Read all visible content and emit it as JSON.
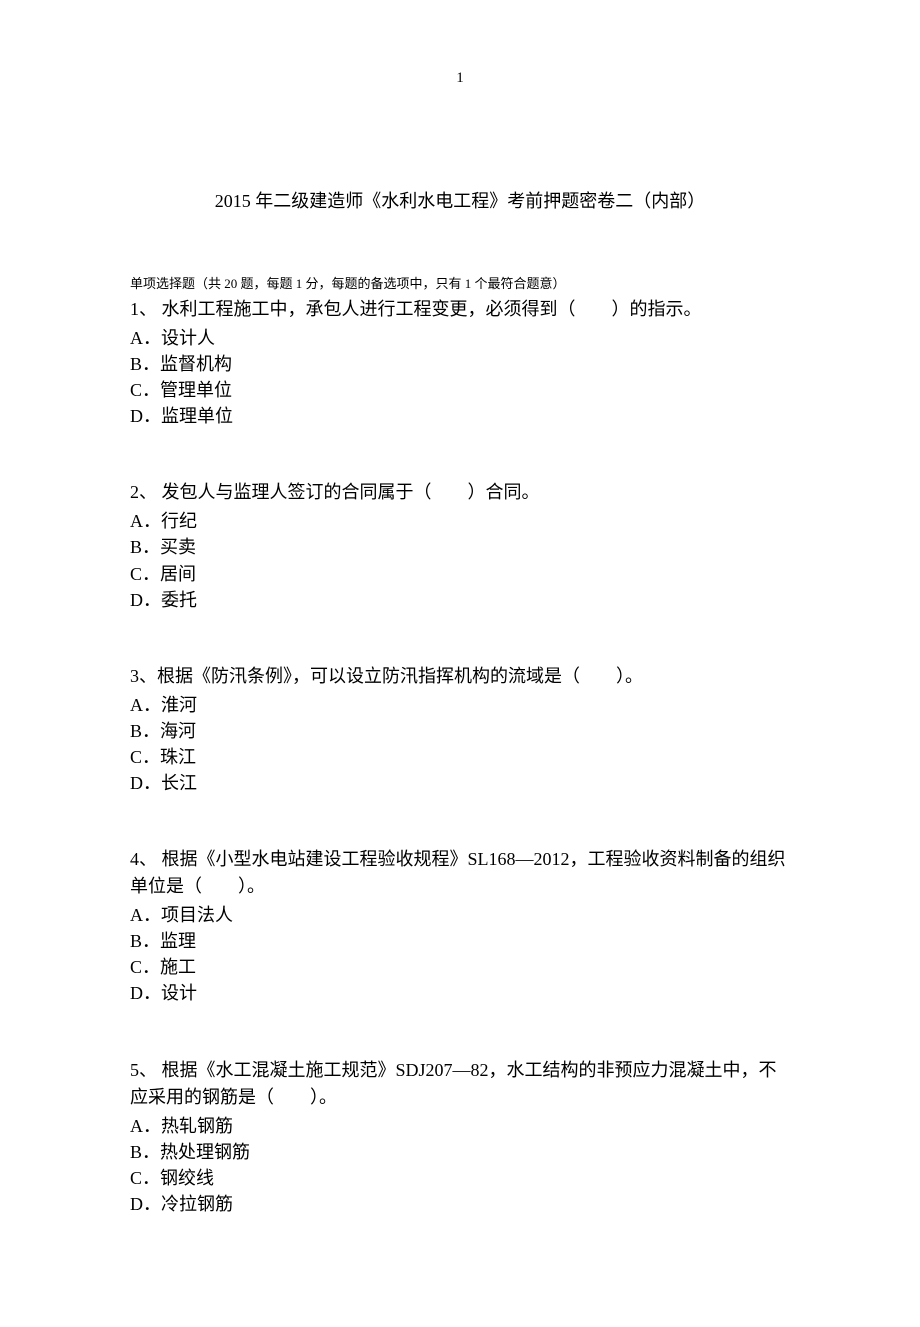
{
  "page_number": "1",
  "title": "2015 年二级建造师《水利水电工程》考前押题密卷二（内部）",
  "instructions": "单项选择题（共 20 题，每题 1 分，每题的备选项中，只有 1 个最符合题意）",
  "questions": [
    {
      "number": "1、",
      "text": " 水利工程施工中，承包人进行工程变更，必须得到（　　）的指示。",
      "options": {
        "A": "A．设计人",
        "B": "B．监督机构",
        "C": "C．管理单位",
        "D": "D．监理单位"
      }
    },
    {
      "number": "2、",
      "text": " 发包人与监理人签订的合同属于（　　）合同。",
      "options": {
        "A": "A．行纪",
        "B": "B．买卖",
        "C": "C．居间",
        "D": "D．委托"
      }
    },
    {
      "number": "3、",
      "text": "根据《防汛条例》，可以设立防汛指挥机构的流域是（　　）。",
      "options": {
        "A": "A．淮河",
        "B": "B．海河",
        "C": "C．珠江",
        "D": "D．长江"
      }
    },
    {
      "number": "4、",
      "text": " 根据《小型水电站建设工程验收规程》SL168—2012，工程验收资料制备的组织单位是（　　）。",
      "options": {
        "A": "A．项目法人",
        "B": "B．监理",
        "C": "C．施工",
        "D": "D．设计"
      }
    },
    {
      "number": "5、",
      "text": " 根据《水工混凝土施工规范》SDJ207—82，水工结构的非预应力混凝土中，不应采用的钢筋是（　　）。",
      "options": {
        "A": "A．热轧钢筋",
        "B": "B．热处理钢筋",
        "C": "C．钢绞线",
        "D": "D．冷拉钢筋"
      }
    }
  ]
}
